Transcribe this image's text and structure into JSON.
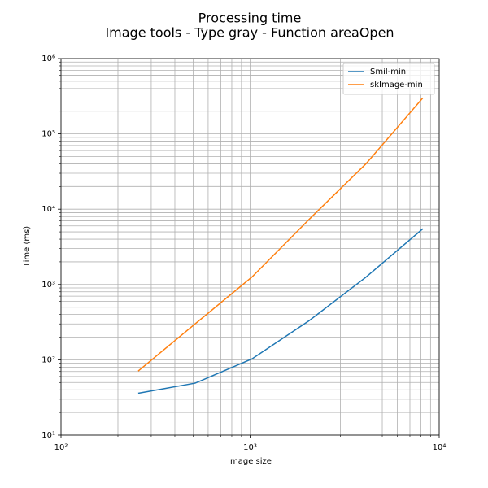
{
  "chart_data": {
    "type": "line",
    "title": "Processing time",
    "subtitle": "Image tools - Type gray - Function areaOpen",
    "x_label": "Image size",
    "y_label": "Time (ms)",
    "x": [
      256,
      512,
      1024,
      2048,
      4096,
      8192
    ],
    "series": [
      {
        "name": "Smil-min",
        "color": "#1f77b4",
        "values": [
          36,
          49,
          103,
          330,
          1250,
          5500
        ]
      },
      {
        "name": "skImage-min",
        "color": "#ff7f0e",
        "values": [
          71,
          300,
          1260,
          7300,
          40000,
          300000
        ]
      }
    ],
    "xlim": [
      100,
      10000
    ],
    "xticks": [
      {
        "value": 100,
        "label": "10²"
      },
      {
        "value": 1000,
        "label": "10³"
      },
      {
        "value": 10000,
        "label": "10⁴"
      }
    ],
    "ylim": [
      10,
      1000000
    ],
    "yticks": [
      {
        "value": 10,
        "label": "10¹"
      },
      {
        "value": 100,
        "label": "10²"
      },
      {
        "value": 1000,
        "label": "10³"
      },
      {
        "value": 10000,
        "label": "10⁴"
      },
      {
        "value": 100000,
        "label": "10⁵"
      },
      {
        "value": 1000000,
        "label": "10⁶"
      }
    ],
    "xscale": "log",
    "yscale": "log",
    "grid": true,
    "minor_grid": true,
    "legend": "upper right"
  }
}
